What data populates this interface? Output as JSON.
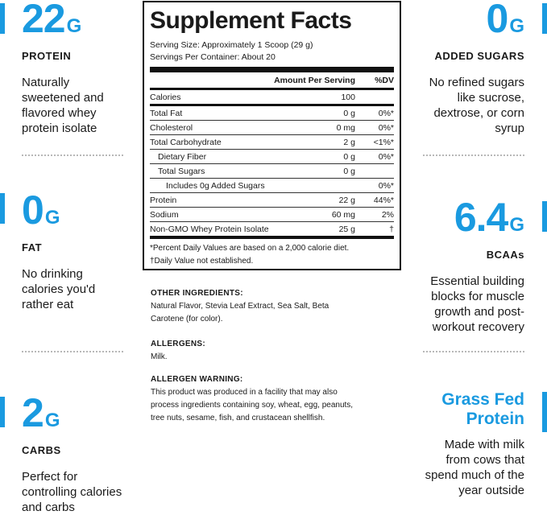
{
  "left": [
    {
      "value": "22",
      "unit": "G",
      "label": "PROTEIN",
      "desc": [
        "Naturally",
        "sweetened and",
        "flavored whey",
        "protein isolate"
      ]
    },
    {
      "value": "0",
      "unit": "G",
      "label": "FAT",
      "desc": [
        "No drinking",
        "calories you'd",
        "rather eat"
      ]
    },
    {
      "value": "2",
      "unit": "G",
      "label": "CARBS",
      "desc": [
        "Perfect for",
        "controlling calories",
        "and carbs"
      ]
    }
  ],
  "right": [
    {
      "value": "0",
      "unit": "G",
      "label": "ADDED SUGARS",
      "desc": [
        "No refined sugars",
        "like sucrose,",
        "dextrose, or corn",
        "syrup"
      ]
    },
    {
      "value": "6.4",
      "unit": "G",
      "label": "BCAAs",
      "desc": [
        "Essential building",
        "blocks for muscle",
        "growth and post-",
        "workout recovery"
      ]
    },
    {
      "title": [
        "Grass Fed",
        "Protein"
      ],
      "desc": [
        "Made with milk",
        "from cows that",
        "spend much of the",
        "year outside"
      ]
    }
  ],
  "facts": {
    "title": "Supplement Facts",
    "serving_size": "Serving Size: Approximately 1 Scoop (29 g)",
    "servings_per": "Servings Per Container: About 20",
    "header_amount": "Amount Per Serving",
    "header_dv": "%DV",
    "rows": [
      {
        "name": "Calories",
        "amount": "100",
        "dv": ""
      },
      {
        "name": "Total Fat",
        "amount": "0 g",
        "dv": "0%*"
      },
      {
        "name": "Cholesterol",
        "amount": "0 mg",
        "dv": "0%*"
      },
      {
        "name": "Total Carbohydrate",
        "amount": "2 g",
        "dv": "<1%*"
      },
      {
        "name": "Dietary Fiber",
        "amount": "0 g",
        "dv": "0%*"
      },
      {
        "name": "Total Sugars",
        "amount": "0 g",
        "dv": ""
      },
      {
        "name": "Includes 0g Added Sugars",
        "amount": "",
        "dv": "0%*"
      },
      {
        "name": "Protein",
        "amount": "22 g",
        "dv": "44%*"
      },
      {
        "name": "Sodium",
        "amount": "60 mg",
        "dv": "2%"
      },
      {
        "name": "Non-GMO Whey Protein Isolate",
        "amount": "25 g",
        "dv": "†"
      }
    ],
    "footnote1": "*Percent Daily Values are based on a 2,000 calorie diet.",
    "footnote2": "†Daily Value not established."
  },
  "other": {
    "ingredients_heading": "OTHER INGREDIENTS:",
    "ingredients": [
      "Natural Flavor, Stevia Leaf Extract, Sea Salt, Beta",
      "Carotene (for color)."
    ],
    "allergens_heading": "ALLERGENS:",
    "allergens": "Milk.",
    "warning_heading": "ALLERGEN WARNING:",
    "warning": [
      "This product was produced in a facility that may also",
      "process ingredients containing soy, wheat, egg, peanuts,",
      "tree nuts, sesame, fish, and crustacean shellfish."
    ]
  },
  "colors": {
    "accent": "#1a9ae0",
    "text": "#1a1a1a"
  }
}
